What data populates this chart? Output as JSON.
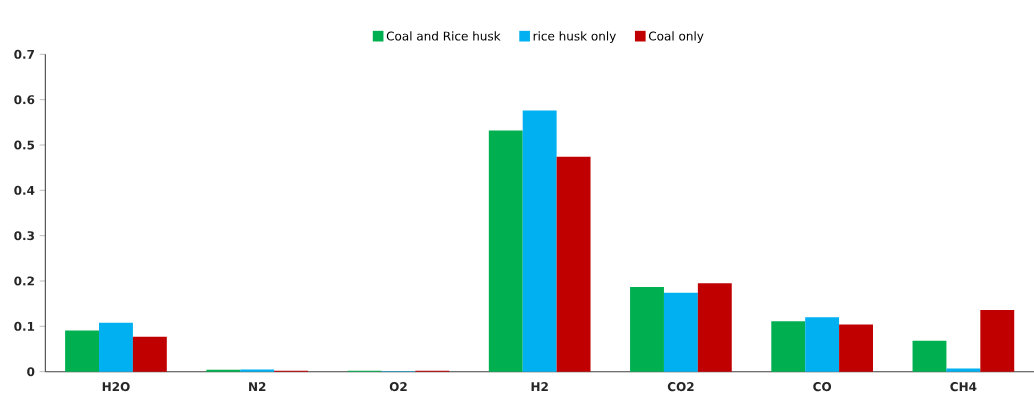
{
  "chart_data": {
    "type": "bar",
    "categories": [
      "H2O",
      "N2",
      "O2",
      "H2",
      "CO2",
      "CO",
      "CH4"
    ],
    "series": [
      {
        "name": "Coal and Rice husk",
        "color": "#00b050",
        "values": [
          0.091,
          0.004,
          0.002,
          0.532,
          0.187,
          0.111,
          0.068
        ]
      },
      {
        "name": "rice husk only",
        "color": "#00b0f0",
        "values": [
          0.108,
          0.005,
          0.001,
          0.576,
          0.174,
          0.12,
          0.007
        ]
      },
      {
        "name": "Coal only",
        "color": "#c00000",
        "values": [
          0.077,
          0.002,
          0.002,
          0.474,
          0.195,
          0.104,
          0.136
        ]
      }
    ],
    "ylim": [
      0,
      0.7
    ],
    "yticks": [
      0,
      0.1,
      0.2,
      0.3,
      0.4,
      0.5,
      0.6,
      0.7
    ],
    "grid": false,
    "legend": "top"
  }
}
